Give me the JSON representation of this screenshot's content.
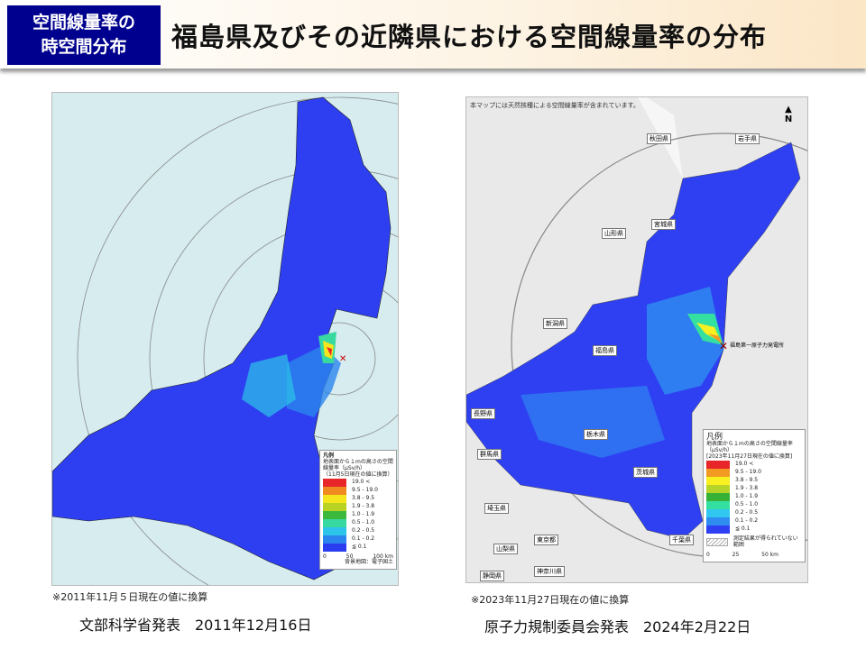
{
  "header": {
    "badge": "空間線量率の\n時空間分布",
    "badge_line1": "空間線量率の",
    "badge_line2": "時空間分布",
    "title": "福島県及びその近隣県における空間線量率の分布"
  },
  "left_map": {
    "legend_title": "凡例",
    "legend_subtitle": "地表面から１mの高さの空間線量率（μSv/h）",
    "legend_note": "（11月5日現在の値に換算）",
    "legend_items": [
      {
        "label": "19.0 <",
        "color": "#e8262a"
      },
      {
        "label": "9.5 - 19.0",
        "color": "#f08a1e"
      },
      {
        "label": "3.8 - 9.5",
        "color": "#f5e51c"
      },
      {
        "label": "1.9 - 3.8",
        "color": "#b8d323"
      },
      {
        "label": "1.0 - 1.9",
        "color": "#3cb93c"
      },
      {
        "label": "0.5 - 1.0",
        "color": "#38d9a0"
      },
      {
        "label": "0.2 - 0.5",
        "color": "#2cc4e8"
      },
      {
        "label": "0.1 - 0.2",
        "color": "#2a86ee"
      },
      {
        "label": "≦ 0.1",
        "color": "#2a3cf0"
      }
    ],
    "scale": [
      "0",
      "50",
      "100 km"
    ],
    "source": "背景地図：電子国土",
    "footnote": "※2011年11月５日現在の値に換算",
    "caption": "文部科学省発表　2011年12月16日"
  },
  "right_map": {
    "top_note": "本マップには天然核種による空間線量率が含まれています。",
    "north": "N",
    "plant_label": "福島第一原子力発電所",
    "legend_title": "凡例",
    "legend_subtitle": "地表面から１mの高さの空間線量率（μSv/h）",
    "legend_note": "[2023年11月27日現在の値に換算]",
    "legend_items": [
      {
        "label": "19.0 <",
        "color": "#e8262a"
      },
      {
        "label": "9.5 - 19.0",
        "color": "#f29a22"
      },
      {
        "label": "3.8 - 9.5",
        "color": "#f8f020"
      },
      {
        "label": "1.9 - 3.8",
        "color": "#b6d42a"
      },
      {
        "label": "1.0 - 1.9",
        "color": "#35b235"
      },
      {
        "label": "0.5 - 1.0",
        "color": "#34e0a0"
      },
      {
        "label": "0.2 - 0.5",
        "color": "#30c8f0"
      },
      {
        "label": "0.1 - 0.2",
        "color": "#2e8cf0"
      },
      {
        "label": "≦ 0.1",
        "color": "#2e40f2"
      }
    ],
    "legend_hatch": "測定結果が得られていない範囲",
    "scale": [
      "0",
      "25",
      "50 km"
    ],
    "prefectures": [
      "岩手県",
      "秋田県",
      "宮城県",
      "山形県",
      "新潟県",
      "福島県",
      "長野県",
      "群馬県",
      "栃木県",
      "茨城県",
      "埼玉県",
      "山梨県",
      "東京都",
      "千葉県",
      "神奈川県",
      "静岡県"
    ],
    "footnote": "※2023年11月27日現在の値に換算",
    "caption": "原子力規制委員会発表　2024年2月22日"
  }
}
